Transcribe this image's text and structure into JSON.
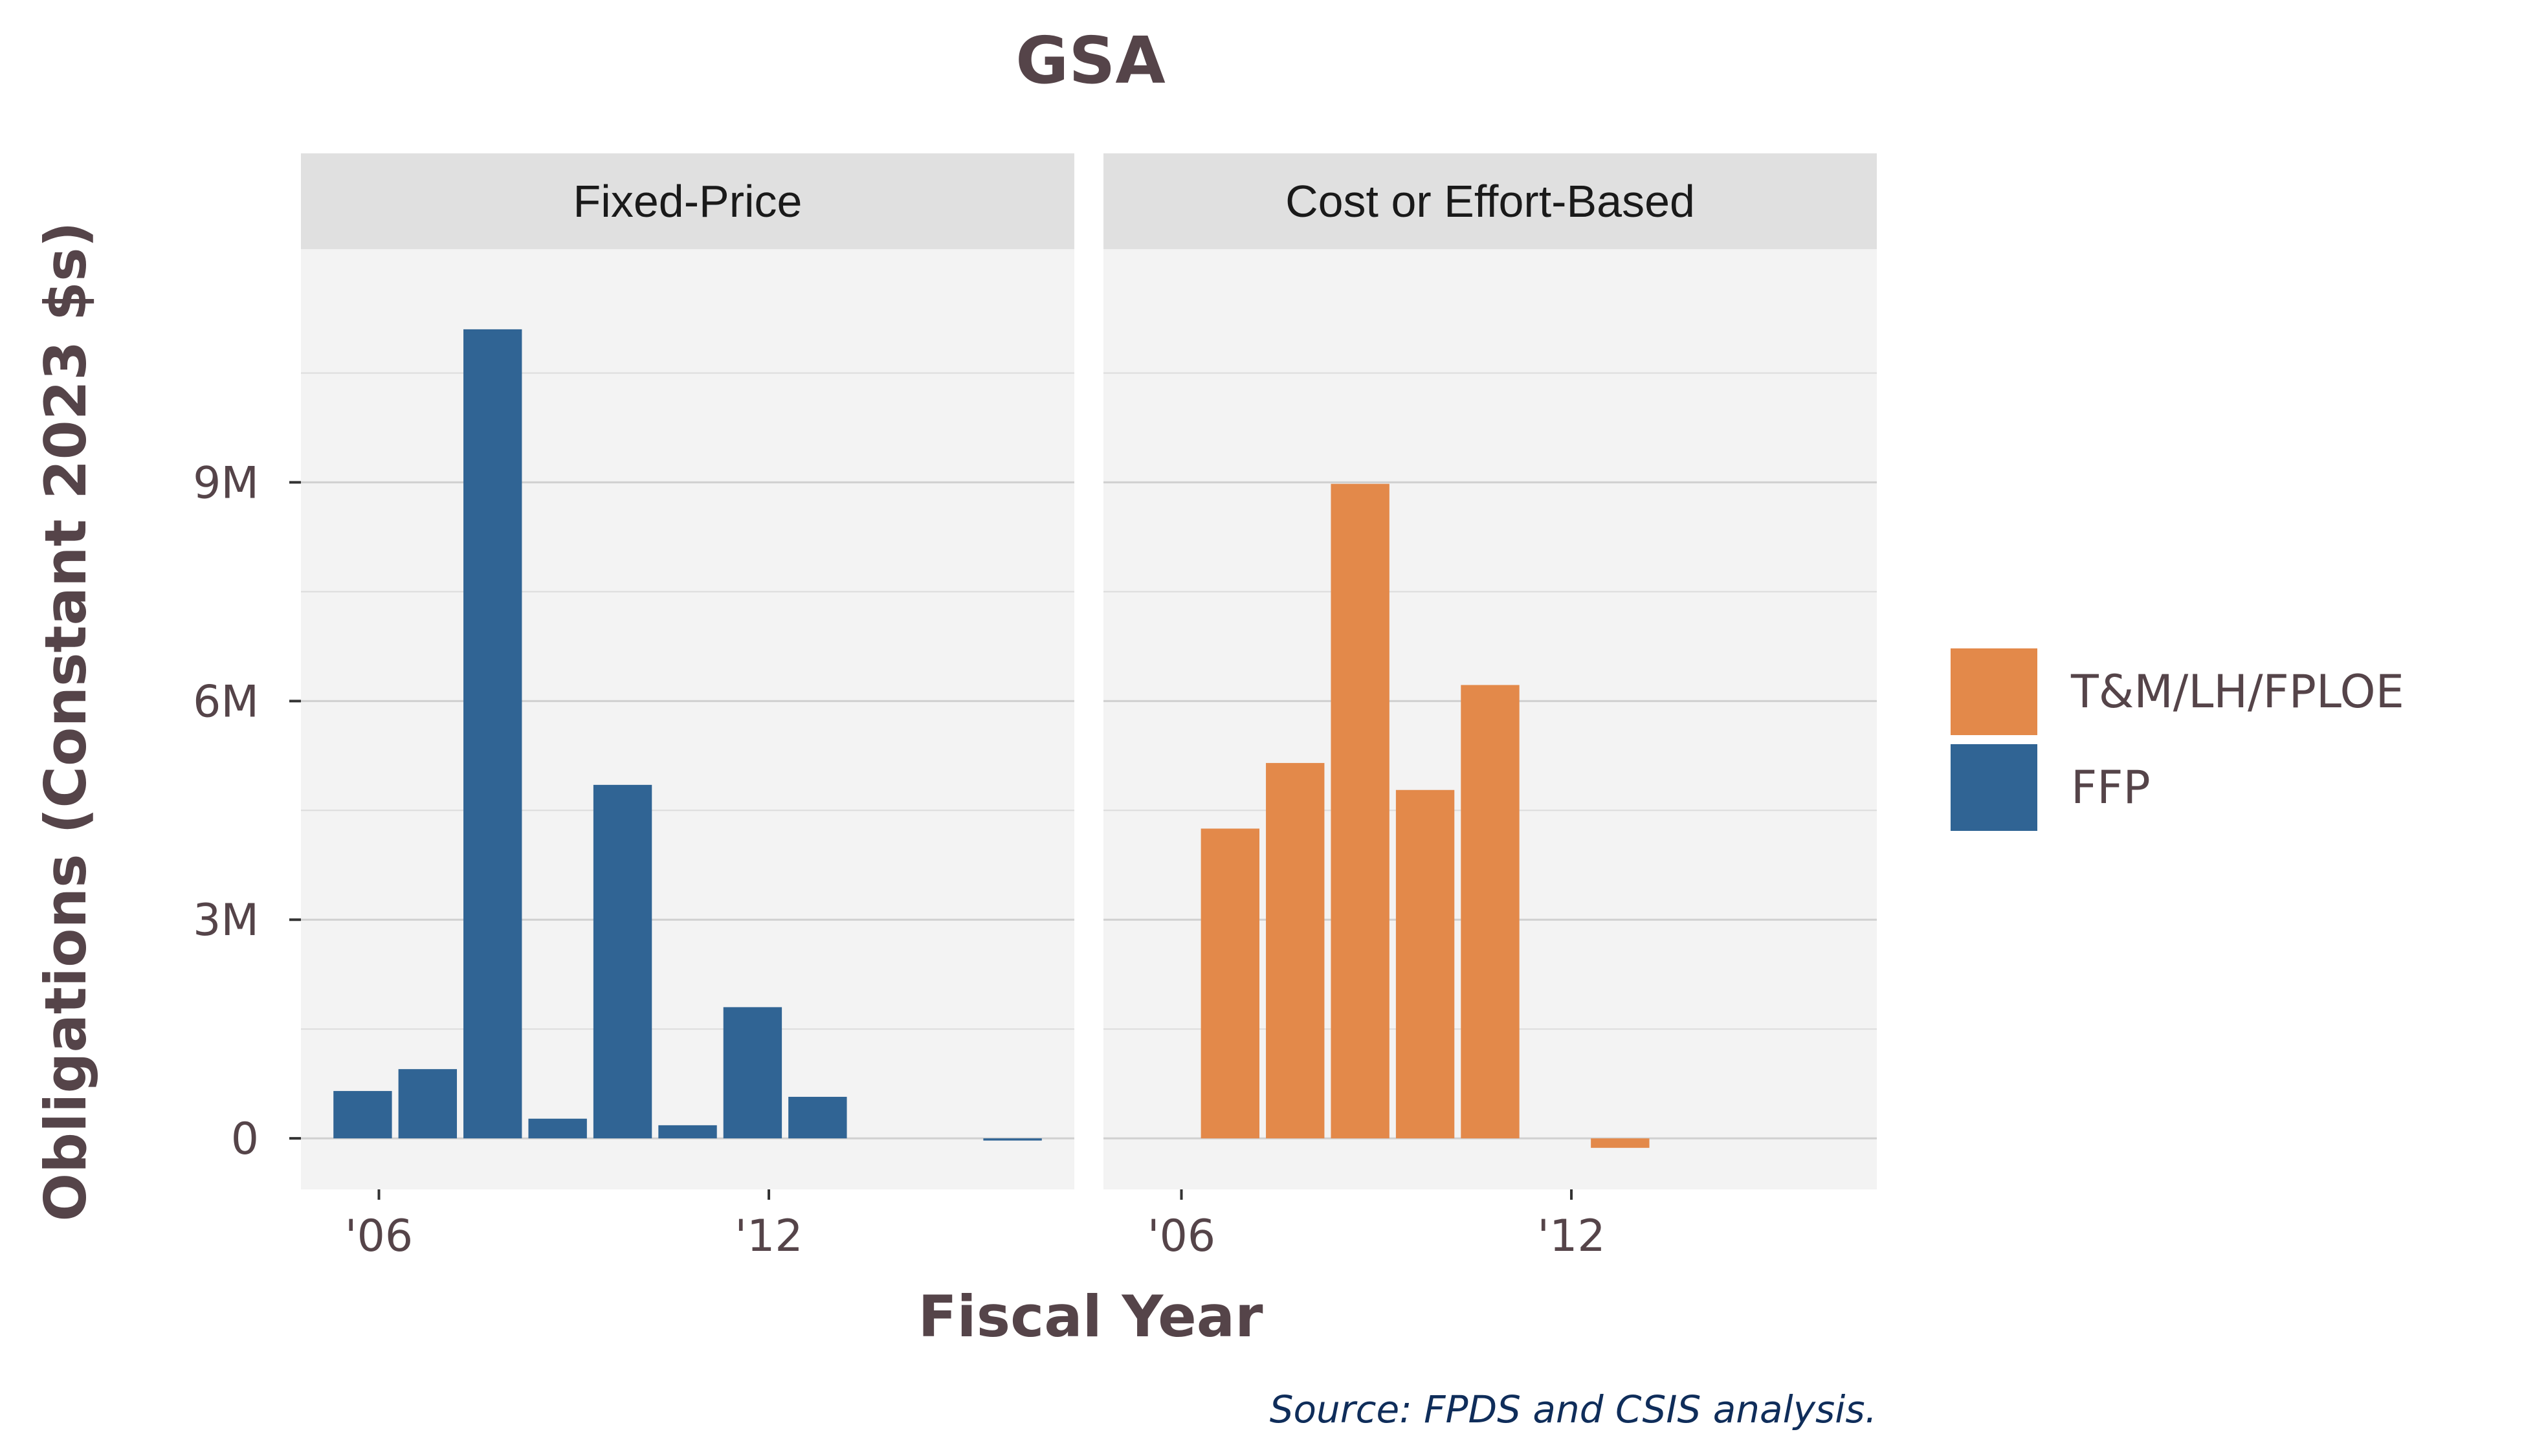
{
  "chart_data": {
    "type": "bar",
    "title": "GSA",
    "xlabel": "Fiscal Year",
    "ylabel": "Obligations (Constant 2023 $s)",
    "caption": "Source: FPDS and CSIS analysis.",
    "ylim": [
      -0.7,
      12.2
    ],
    "xlim": [
      2004.8,
      2016.7
    ],
    "y_ticks": [
      {
        "value": 0,
        "label": "0"
      },
      {
        "value": 3,
        "label": "3M"
      },
      {
        "value": 6,
        "label": "6M"
      },
      {
        "value": 9,
        "label": "9M"
      }
    ],
    "x_ticks": [
      {
        "value": 2006,
        "label": "'06"
      },
      {
        "value": 2012,
        "label": "'12"
      }
    ],
    "grid": true,
    "legend_position": "right",
    "legend": [
      {
        "name": "T&M/LH/FPLOE",
        "color": "#E3894A"
      },
      {
        "name": "FFP",
        "color": "#306494"
      }
    ],
    "panels": [
      {
        "label": "Fixed-Price",
        "series": [
          {
            "name": "FFP",
            "color": "#306494",
            "x": [
              2005.75,
              2006.75,
              2007.75,
              2008.75,
              2009.75,
              2010.75,
              2011.75,
              2012.75,
              2015.75
            ],
            "values": [
              0.65,
              0.95,
              11.1,
              0.27,
              4.85,
              0.18,
              1.8,
              0.57,
              -0.03
            ]
          }
        ]
      },
      {
        "label": "Cost or Effort-Based",
        "series": [
          {
            "name": "T&M/LH/FPLOE",
            "color": "#E3894A",
            "x": [
              2006.75,
              2007.75,
              2008.75,
              2009.75,
              2010.75,
              2012.75
            ],
            "values": [
              4.25,
              5.15,
              8.98,
              4.78,
              6.22,
              -0.13
            ]
          }
        ]
      }
    ]
  }
}
